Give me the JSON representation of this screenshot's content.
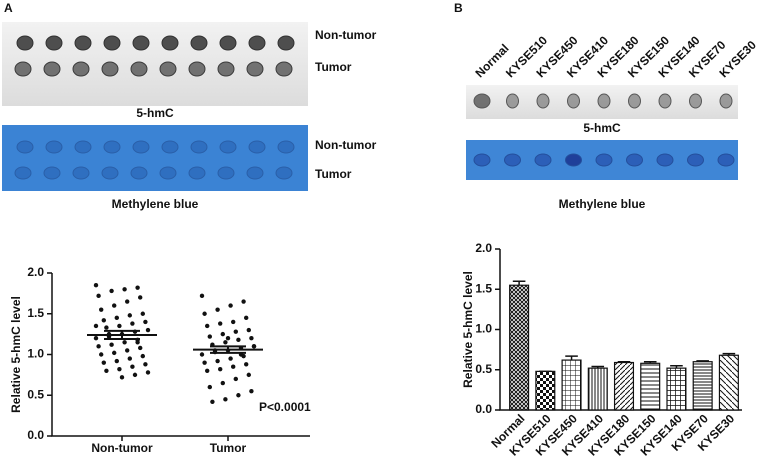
{
  "panels": [
    "A",
    "B"
  ],
  "blots": {
    "A": {
      "hmc": {
        "rows": [
          "Non-tumor",
          "Tumor"
        ],
        "caption": "5-hmC"
      },
      "mb": {
        "rows": [
          "Non-tumor",
          "Tumor"
        ],
        "caption": "Methylene blue"
      }
    },
    "B": {
      "columns": [
        "Normal",
        "KYSE510",
        "KYSE450",
        "KYSE410",
        "KYSE180",
        "KYSE150",
        "KYSE140",
        "KYSE70",
        "KYSE30"
      ],
      "hmc_caption": "5-hmC",
      "mb_caption": "Methylene blue"
    }
  },
  "chart_data": [
    {
      "type": "strip",
      "ylabel": "Relative 5-hmC level",
      "annotation": "P<0.0001",
      "categories": [
        "Non-tumor",
        "Tumor"
      ],
      "series": [
        {
          "values": [
            1.85,
            1.82,
            1.8,
            1.78,
            1.72,
            1.7,
            1.65,
            1.6,
            1.55,
            1.5,
            1.48,
            1.45,
            1.42,
            1.4,
            1.38,
            1.35,
            1.33,
            1.3,
            1.28,
            1.25,
            1.22,
            1.2,
            1.18,
            1.15,
            1.12,
            1.1,
            1.08,
            1.05,
            1.02,
            1.0,
            0.98,
            0.95,
            0.92,
            0.9,
            0.88,
            0.85,
            0.82,
            0.8,
            0.78,
            0.75,
            0.72,
            1.25,
            1.35,
            1.15
          ]
        },
        {
          "values": [
            1.72,
            1.65,
            1.6,
            1.55,
            1.5,
            1.45,
            1.4,
            1.38,
            1.35,
            1.3,
            1.28,
            1.25,
            1.22,
            1.2,
            1.18,
            1.15,
            1.12,
            1.1,
            1.08,
            1.05,
            1.03,
            1.0,
            0.98,
            0.95,
            0.92,
            0.9,
            0.88,
            0.85,
            0.82,
            0.8,
            0.75,
            0.7,
            0.65,
            0.6,
            0.55,
            0.5,
            0.45,
            0.42,
            1.1,
            1.0,
            1.2,
            1.05
          ]
        }
      ],
      "mean": [
        1.24,
        1.06
      ],
      "sem": [
        0.05,
        0.04
      ],
      "ylim": [
        0,
        2
      ],
      "yticks": [
        {
          "value": 0,
          "label": "0.0"
        },
        0.5,
        {
          "value": 1,
          "label": "1.0"
        },
        1.5,
        {
          "value": 2,
          "label": "2.0"
        }
      ]
    },
    {
      "type": "bar",
      "ylabel": "Relative 5-hmC level",
      "categories": [
        "Normal",
        "KYSE510",
        "KYSE450",
        "KYSE410",
        "KYSE180",
        "KYSE150",
        "KYSE140",
        "KYSE70",
        "KYSE30"
      ],
      "values": [
        1.55,
        0.48,
        0.62,
        0.52,
        0.59,
        0.58,
        0.52,
        0.6,
        0.68
      ],
      "errors": [
        0.05,
        0.0,
        0.05,
        0.02,
        0.01,
        0.02,
        0.03,
        0.01,
        0.02
      ],
      "ylim": [
        0,
        2
      ],
      "yticks": [
        {
          "value": 0,
          "label": "0.0"
        },
        0.5,
        {
          "value": 1,
          "label": "1.0"
        },
        1.5,
        {
          "value": 2,
          "label": "2.0"
        }
      ]
    }
  ]
}
